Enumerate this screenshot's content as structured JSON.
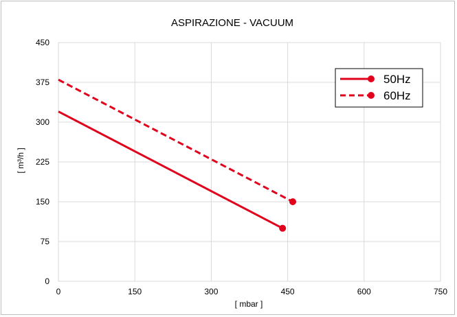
{
  "chart_data": {
    "type": "line",
    "title": "ASPIRAZIONE - VACUUM",
    "xlabel": "[ mbar ]",
    "ylabel": "[ m³/h ]",
    "xlim": [
      0,
      750
    ],
    "ylim": [
      0,
      450
    ],
    "x_ticks": [
      0,
      150,
      300,
      450,
      600,
      750
    ],
    "y_ticks": [
      0,
      75,
      150,
      225,
      300,
      375,
      450
    ],
    "x_tick_labels": [
      "0",
      "150",
      "300",
      "450",
      "600",
      "750"
    ],
    "y_tick_labels": [
      "0",
      "75",
      "150",
      "225",
      "300",
      "375",
      "450"
    ],
    "grid": true,
    "legend_position": "top-right",
    "series": [
      {
        "name": "50Hz",
        "color": "#e0001b",
        "dash": "solid",
        "x": [
          0,
          440
        ],
        "y": [
          320,
          100
        ],
        "end_marker": true
      },
      {
        "name": "60Hz",
        "color": "#e0001b",
        "dash": "dashed",
        "x": [
          0,
          460
        ],
        "y": [
          380,
          150
        ],
        "end_marker": true
      }
    ]
  }
}
